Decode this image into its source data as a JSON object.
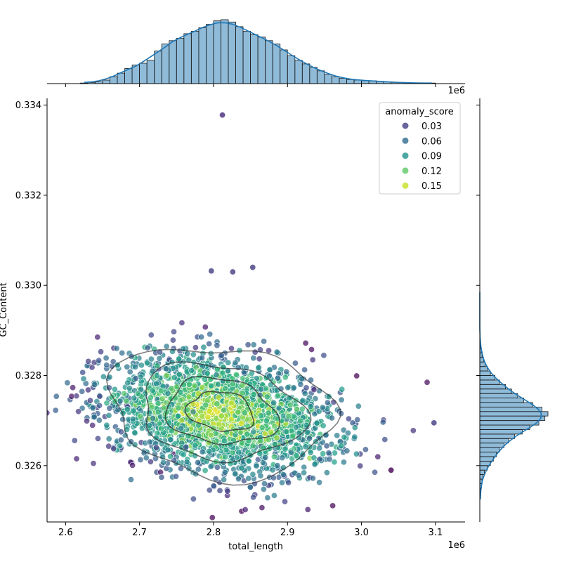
{
  "chart_data": {
    "type": "scatter",
    "xlabel": "total_length",
    "ylabel": "GC_Content",
    "x_offset_label": "1e6",
    "top_offset_label": "1e6",
    "xlim": [
      2.575,
      3.14
    ],
    "ylim": [
      0.32475,
      0.33415
    ],
    "x_ticks": [
      2.6,
      2.7,
      2.8,
      2.9,
      3.0,
      3.1
    ],
    "x_tick_labels": [
      "2.6",
      "2.7",
      "2.8",
      "2.9",
      "3.0",
      "3.1"
    ],
    "y_ticks": [
      0.326,
      0.328,
      0.33,
      0.332,
      0.334
    ],
    "y_tick_labels": [
      "0.326",
      "0.328",
      "0.330",
      "0.332",
      "0.334"
    ],
    "grid": false,
    "colormap": "viridis",
    "legend": {
      "title": "anomaly_score",
      "placement": "top-right",
      "entries": [
        {
          "label": "0.03",
          "color": "#433e85"
        },
        {
          "label": "0.06",
          "color": "#2f6b8e"
        },
        {
          "label": "0.09",
          "color": "#21918c"
        },
        {
          "label": "0.12",
          "color": "#5cc863"
        },
        {
          "label": "0.15",
          "color": "#c8e020"
        }
      ]
    },
    "scatter": {
      "center": [
        2.81,
        0.32715
      ],
      "spread": [
        0.075,
        0.00062
      ],
      "n_points": 2400,
      "outliers": [
        {
          "x": 2.812,
          "y": 0.33378,
          "score": 0.02
        },
        {
          "x": 2.853,
          "y": 0.3304,
          "score": 0.03
        },
        {
          "x": 2.797,
          "y": 0.33032,
          "score": 0.03
        },
        {
          "x": 2.826,
          "y": 0.3303,
          "score": 0.03
        },
        {
          "x": 3.098,
          "y": 0.32695,
          "score": 0.03
        },
        {
          "x": 3.04,
          "y": 0.3259,
          "score": 0.0
        }
      ]
    },
    "kde_contours": [
      {
        "rx": 0.15,
        "ry": 0.00145,
        "opacity": 0.6
      },
      {
        "rx": 0.11,
        "ry": 0.00105,
        "opacity": 0.65
      },
      {
        "rx": 0.075,
        "ry": 0.00072,
        "opacity": 0.7
      },
      {
        "rx": 0.045,
        "ry": 0.00043,
        "opacity": 0.75
      }
    ],
    "top_histogram": {
      "bin_start": 2.62,
      "bin_width": 0.01,
      "counts": [
        1,
        2,
        3,
        6,
        12,
        18,
        26,
        32,
        35,
        40,
        56,
        68,
        74,
        78,
        86,
        90,
        96,
        102,
        108,
        110,
        106,
        98,
        90,
        84,
        80,
        74,
        68,
        58,
        48,
        40,
        34,
        28,
        22,
        16,
        12,
        9,
        7,
        6,
        5,
        5,
        4,
        3,
        2,
        2,
        1,
        1,
        1,
        1
      ]
    },
    "right_histogram": {
      "bin_start": 0.3252,
      "bin_width": 0.0001,
      "counts": [
        0,
        1,
        1,
        2,
        3,
        4,
        6,
        10,
        14,
        18,
        22,
        26,
        32,
        38,
        46,
        56,
        66,
        78,
        86,
        90,
        82,
        70,
        58,
        50,
        42,
        34,
        26,
        20,
        14,
        10,
        7,
        5,
        3,
        2,
        1,
        1,
        0,
        0,
        0,
        0,
        0,
        0,
        0,
        0,
        0,
        0,
        0
      ]
    }
  }
}
